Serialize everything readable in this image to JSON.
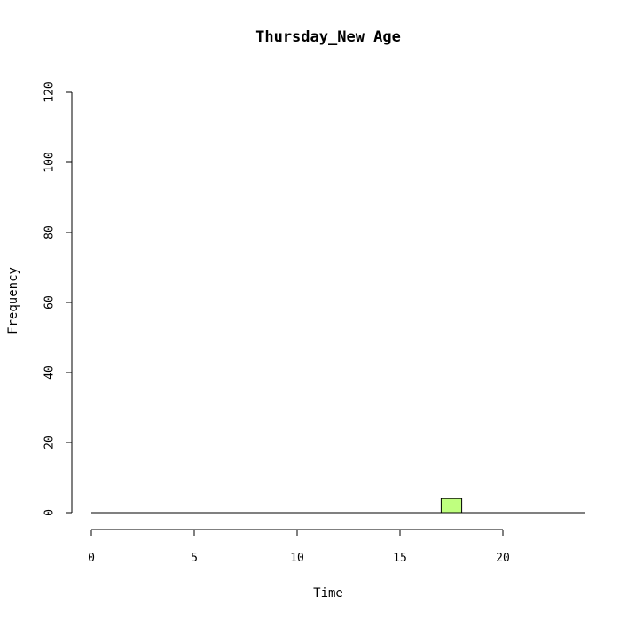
{
  "chart_data": {
    "type": "bar",
    "title": "Thursday_New Age",
    "xlabel": "Time",
    "ylabel": "Frequency",
    "xlim": [
      0,
      24
    ],
    "ylim": [
      0,
      120
    ],
    "x_ticks": [
      0,
      5,
      10,
      15,
      20
    ],
    "y_ticks": [
      0,
      20,
      40,
      60,
      80,
      100,
      120
    ],
    "bins": [
      {
        "start": 17,
        "end": 18,
        "value": 4
      }
    ],
    "bar_color": "#bfff7f",
    "grid": false,
    "legend": "none"
  }
}
